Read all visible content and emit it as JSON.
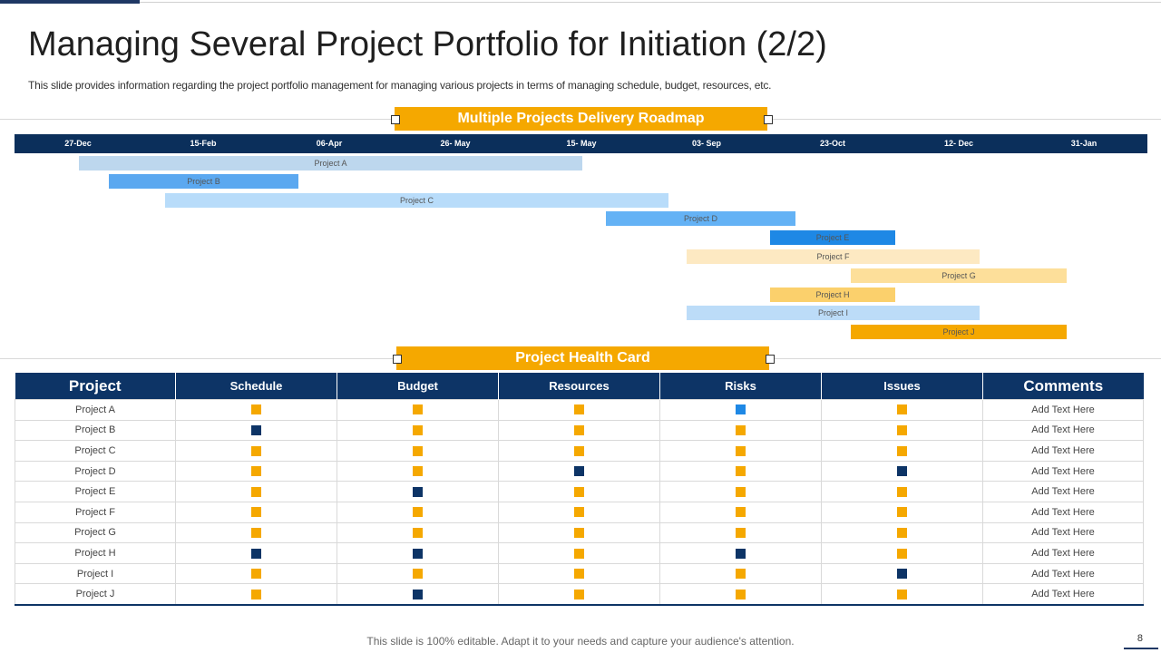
{
  "title": "Managing Several Project Portfolio for Initiation (2/2)",
  "subtitle": "This slide provides information regarding the project portfolio management for managing various projects in terms of managing schedule, budget, resources, etc.",
  "roadmap": {
    "banner": "Multiple Projects Delivery Roadmap",
    "dates": [
      "27-Dec",
      "15-Feb",
      "06-Apr",
      "26- May",
      "15- May",
      "03- Sep",
      "23-Oct",
      "12- Dec",
      "31-Jan"
    ],
    "bars": [
      {
        "label": "Project A",
        "color": "#bdd7ee"
      },
      {
        "label": "Project B",
        "color": "#5ba8f0"
      },
      {
        "label": "Project C",
        "color": "#b8dcfa"
      },
      {
        "label": "Project D",
        "color": "#64b2f5"
      },
      {
        "label": "Project E",
        "color": "#1e88e5"
      },
      {
        "label": "Project F",
        "color": "#fde9c2"
      },
      {
        "label": "Project G",
        "color": "#fddf9a"
      },
      {
        "label": "Project H",
        "color": "#fbd06c"
      },
      {
        "label": "Project I",
        "color": "#bcdcf8"
      },
      {
        "label": "Project J",
        "color": "#f5a800"
      }
    ]
  },
  "health_card": {
    "banner": "Project Health Card",
    "headers": [
      "Project",
      "Schedule",
      "Budget",
      "Resources",
      "Risks",
      "Issues",
      "Comments"
    ],
    "status_colors": {
      "y": "#f5a800",
      "n": "#0d3466",
      "b": "#1e88e5"
    },
    "rows": [
      {
        "project": "Project A",
        "status": [
          "y",
          "y",
          "y",
          "b",
          "y"
        ],
        "comment": "Add Text Here"
      },
      {
        "project": "Project B",
        "status": [
          "n",
          "y",
          "y",
          "y",
          "y"
        ],
        "comment": "Add Text Here"
      },
      {
        "project": "Project C",
        "status": [
          "y",
          "y",
          "y",
          "y",
          "y"
        ],
        "comment": "Add Text Here"
      },
      {
        "project": "Project D",
        "status": [
          "y",
          "y",
          "n",
          "y",
          "n"
        ],
        "comment": "Add Text Here"
      },
      {
        "project": "Project E",
        "status": [
          "y",
          "n",
          "y",
          "y",
          "y"
        ],
        "comment": "Add Text Here"
      },
      {
        "project": "Project F",
        "status": [
          "y",
          "y",
          "y",
          "y",
          "y"
        ],
        "comment": "Add Text Here"
      },
      {
        "project": "Project G",
        "status": [
          "y",
          "y",
          "y",
          "y",
          "y"
        ],
        "comment": "Add Text Here"
      },
      {
        "project": "Project H",
        "status": [
          "n",
          "n",
          "y",
          "n",
          "y"
        ],
        "comment": "Add Text Here"
      },
      {
        "project": "Project I",
        "status": [
          "y",
          "y",
          "y",
          "y",
          "n"
        ],
        "comment": "Add Text Here"
      },
      {
        "project": "Project J",
        "status": [
          "y",
          "n",
          "y",
          "y",
          "y"
        ],
        "comment": "Add Text Here"
      }
    ]
  },
  "footer": "This slide is 100% editable. Adapt it to your needs and capture your audience's attention.",
  "page_number": "8"
}
